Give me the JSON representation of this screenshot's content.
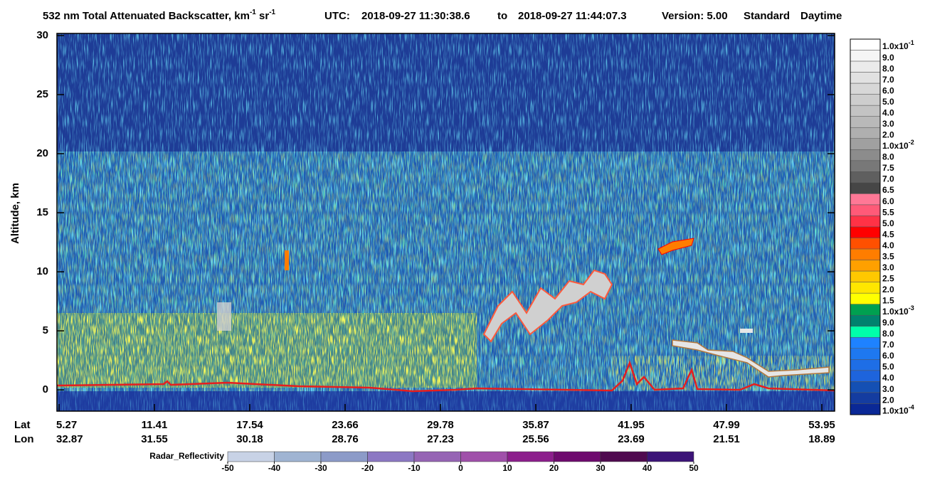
{
  "chart_data": {
    "type": "heatmap",
    "title": {
      "text": "532 nm Total Attenuated Backscatter, km",
      "exp1": "-1",
      "unit2": "sr",
      "exp2": "-1"
    },
    "utc_label": "UTC:",
    "start_time": "2018-09-27 11:30:38.6",
    "to_label": "to",
    "end_time": "2018-09-27 11:44:07.3",
    "version": "Version: 5.00",
    "product": "Standard",
    "daytime": "Daytime",
    "y_label": "Altitude, km",
    "ylim": [
      -1.8,
      30
    ],
    "yticks": [
      0,
      5,
      10,
      15,
      20,
      25,
      30
    ],
    "lat_label": "Lat",
    "lon_label": "Lon",
    "lat": [
      "5.27",
      "11.41",
      "17.54",
      "23.66",
      "29.78",
      "35.87",
      "41.95",
      "47.99",
      "53.95"
    ],
    "lon": [
      "32.87",
      "31.55",
      "30.18",
      "28.76",
      "27.23",
      "25.56",
      "23.69",
      "21.51",
      "18.89"
    ],
    "colorbar": {
      "labels": [
        {
          "base": "1.0x10",
          "exp": "-1"
        },
        "9.0",
        "8.0",
        "7.0",
        "6.0",
        "5.0",
        "4.0",
        "3.0",
        "2.0",
        {
          "base": "1.0x10",
          "exp": "-2"
        },
        "8.0",
        "7.5",
        "7.0",
        "6.5",
        "6.0",
        "5.5",
        "5.0",
        "4.5",
        "4.0",
        "3.5",
        "3.0",
        "2.5",
        "2.0",
        "1.5",
        {
          "base": "1.0x10",
          "exp": "-3"
        },
        "9.0",
        "8.0",
        "7.0",
        "6.0",
        "5.0",
        "4.0",
        "3.0",
        "2.0",
        {
          "base": "1.0x10",
          "exp": "-4"
        }
      ],
      "colors": [
        "#ffffff",
        "#f5f5f5",
        "#ebebeb",
        "#e1e1e1",
        "#d7d7d7",
        "#cdcdcd",
        "#c3c3c3",
        "#b9b9b9",
        "#afafaf",
        "#a0a0a0",
        "#8c8c8c",
        "#787878",
        "#5f5f5f",
        "#464646",
        "#ff7896",
        "#ff5a78",
        "#ff3246",
        "#ff0000",
        "#ff5000",
        "#ff7d00",
        "#ffa000",
        "#ffc800",
        "#ffe600",
        "#ffff00",
        "#00a050",
        "#00826e",
        "#00ffaa",
        "#1e82ff",
        "#1e78f0",
        "#1e6ee6",
        "#1e64dc",
        "#1450b4",
        "#143ca0",
        "#0a2896"
      ]
    },
    "radar": {
      "label": "Radar_Reflectivity",
      "ticks": [
        -50,
        -40,
        -30,
        -20,
        -10,
        0,
        10,
        20,
        30,
        40,
        50
      ],
      "colors": [
        "#c8d2e6",
        "#a0b4d2",
        "#8c9bc8",
        "#8c78c3",
        "#9664b4",
        "#a050aa",
        "#8c1e8c",
        "#6e0a6e",
        "#500a50",
        "#3c1478"
      ]
    }
  }
}
